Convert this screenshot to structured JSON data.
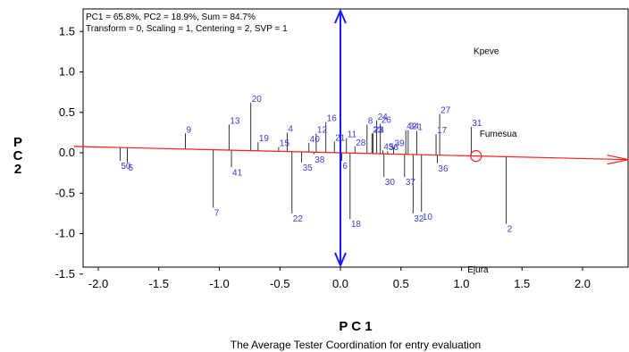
{
  "chart_data": {
    "type": "scatter",
    "info_lines": [
      "PC1 = 65.8%, PC2 = 18.9%, Sum = 84.7%",
      "Transform = 0, Scaling = 1, Centering = 2, SVP = 1"
    ],
    "xlabel": "P C 1",
    "ylabel": "P C 2",
    "caption": "The Average Tester Coordination for entry evaluation",
    "xlim": [
      -2.2,
      2.4
    ],
    "ylim": [
      -1.7,
      1.75
    ],
    "x_ticks": [
      "-2.0",
      "-1.5",
      "-1.0",
      "-0.5",
      "0.0",
      "0.5",
      "1.0",
      "1.5",
      "2.0"
    ],
    "y_ticks": [
      "1.5",
      "1.0",
      "0.5",
      "0.0",
      "-0.5",
      "-1.0",
      "-1.5"
    ],
    "axis_lines": {
      "average_environment_axis_color": "#ff1a1a",
      "ordinate_color": "#1a1aff",
      "average_environment_point": [
        1.12,
        -0.04
      ]
    },
    "environments": [
      {
        "name": "Kpeve",
        "x": 1.1,
        "y": 1.22
      },
      {
        "name": "Fumesua",
        "x": 1.15,
        "y": 0.2
      },
      {
        "name": "Ejura",
        "x": 1.05,
        "y": -1.48
      }
    ],
    "entries": [
      {
        "label": "1",
        "x": 0.63,
        "y": 0.27
      },
      {
        "label": "2",
        "x": 1.37,
        "y": -0.88
      },
      {
        "label": "4",
        "x": -0.44,
        "y": 0.25
      },
      {
        "label": "5",
        "x": -1.76,
        "y": -0.12
      },
      {
        "label": "6",
        "x": 0.01,
        "y": -0.1
      },
      {
        "label": "7",
        "x": -1.05,
        "y": -0.68
      },
      {
        "label": "8",
        "x": 0.22,
        "y": 0.35
      },
      {
        "label": "9",
        "x": -1.28,
        "y": 0.24
      },
      {
        "label": "10",
        "x": 0.67,
        "y": -0.73
      },
      {
        "label": "11",
        "x": 0.05,
        "y": 0.18
      },
      {
        "label": "12",
        "x": -0.2,
        "y": 0.24
      },
      {
        "label": "13",
        "x": -0.92,
        "y": 0.35
      },
      {
        "label": "15",
        "x": -0.51,
        "y": 0.07
      },
      {
        "label": "16",
        "x": -0.12,
        "y": 0.38
      },
      {
        "label": "17",
        "x": 0.79,
        "y": 0.23
      },
      {
        "label": "18",
        "x": 0.08,
        "y": -0.82
      },
      {
        "label": "19",
        "x": -0.68,
        "y": 0.13
      },
      {
        "label": "20",
        "x": -0.74,
        "y": 0.62
      },
      {
        "label": "21",
        "x": -0.05,
        "y": 0.14
      },
      {
        "label": "23",
        "x": 0.26,
        "y": 0.24
      },
      {
        "label": "24",
        "x": 0.3,
        "y": 0.4
      },
      {
        "label": "26",
        "x": 0.33,
        "y": 0.36
      },
      {
        "label": "27",
        "x": 0.82,
        "y": 0.48
      },
      {
        "label": "28",
        "x": 0.12,
        "y": 0.08
      },
      {
        "label": "30",
        "x": 0.36,
        "y": -0.3
      },
      {
        "label": "31",
        "x": 1.08,
        "y": 0.32
      },
      {
        "label": "32",
        "x": 0.6,
        "y": -0.75
      },
      {
        "label": "34",
        "x": 0.56,
        "y": 0.28
      },
      {
        "label": "35",
        "x": -0.32,
        "y": -0.12
      },
      {
        "label": "36",
        "x": 0.8,
        "y": -0.13
      },
      {
        "label": "37",
        "x": 0.53,
        "y": -0.3
      },
      {
        "label": "38",
        "x": -0.22,
        "y": -0.02
      },
      {
        "label": "39",
        "x": 0.44,
        "y": 0.07
      },
      {
        "label": "40",
        "x": -0.26,
        "y": 0.12
      },
      {
        "label": "41",
        "x": -0.9,
        "y": -0.18
      },
      {
        "label": "42",
        "x": 0.54,
        "y": 0.28
      },
      {
        "label": "45",
        "x": 0.35,
        "y": 0.03
      },
      {
        "label": "50",
        "x": -1.82,
        "y": -0.1
      },
      {
        "label": "23",
        "x": 0.27,
        "y": 0.24
      },
      {
        "label": "36",
        "x": 0.39,
        "y": 0.02
      },
      {
        "label": "22",
        "x": -0.4,
        "y": -0.75
      }
    ]
  }
}
